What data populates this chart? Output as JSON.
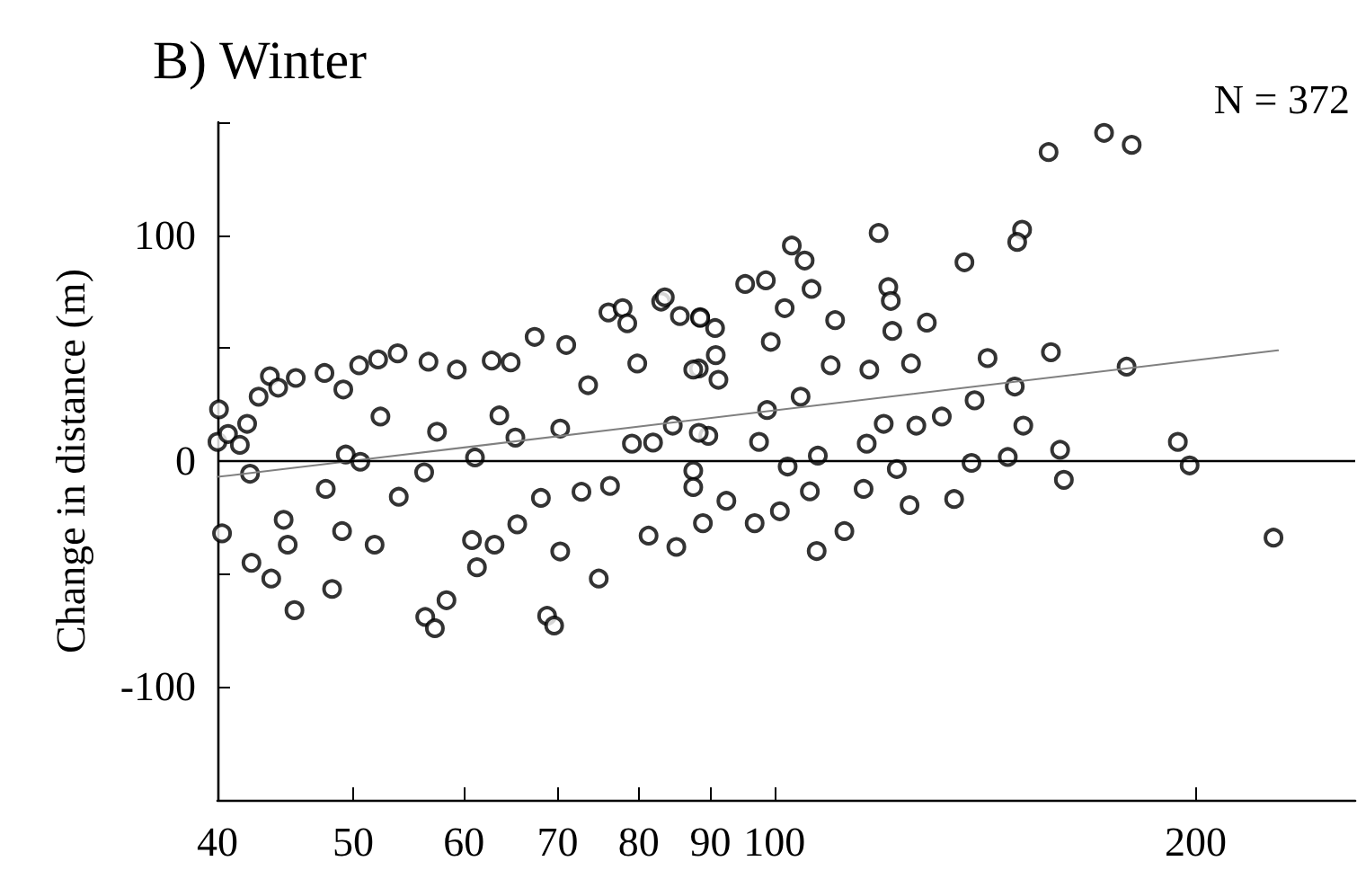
{
  "chart_data": {
    "type": "scatter",
    "title": "B) Winter",
    "ylabel": "Change in distance (m)",
    "annotations": [
      "N = 372"
    ],
    "log": "x",
    "grid": false,
    "marker": "circle",
    "xlim": [
      40,
      260
    ],
    "xticks": [
      40,
      50,
      60,
      70,
      80,
      90,
      100,
      200
    ],
    "ylim": [
      -150,
      150
    ],
    "yticks": [
      -100,
      {
        "value": -50,
        "label": null
      },
      0,
      {
        "value": 50,
        "label": null
      },
      100,
      {
        "value": 150,
        "label": null
      }
    ],
    "ref_lines": [
      {
        "axis": "y",
        "value": 0,
        "color": "#000000"
      }
    ],
    "series": [
      {
        "color": "#000000",
        "x": [
          40.1,
          40,
          40.3,
          40.7,
          42,
          42.3,
          42.8,
          43.6,
          43.7,
          44.2,
          45.4,
          45.5,
          44.9,
          44.6,
          47.7,
          48.3,
          49.2,
          49.1,
          50.5,
          51.8,
          52.1,
          53.8,
          56.2,
          56.6,
          56.3,
          57.2,
          58.3,
          59.3,
          60.8,
          61.3,
          62.8,
          63.1,
          64.8,
          65.5,
          67.4,
          68.8,
          69.6,
          71,
          70.3,
          73.6,
          74.9,
          76.1,
          77.9,
          78.5,
          79.8,
          81.3,
          83,
          83.5,
          85.1,
          85.6,
          88.5,
          88.3,
          89.7,
          41.5,
          42.2,
          47.8,
          49.4,
          50.6,
          52.3,
          53.9,
          57.4,
          61.1,
          63.6,
          65.3,
          68.1,
          70.3,
          72.8,
          76.3,
          79.1,
          81.9,
          84.6,
          87.5,
          88.3,
          157,
          172,
          180,
          150.3,
          149.1,
          118.7,
          136.7,
          102.9,
          105.1,
          95.3,
          98.6,
          120.6,
          121.1,
          106.3,
          101.7,
          110.5,
          121.4,
          128.5,
          88.5,
          90.7,
          90.8,
          87.5,
          91.2,
          99.4,
          109.7,
          116.9,
          125.2,
          142,
          157.6,
          178.5,
          148.5,
          139,
          150.6,
          131.7,
          104.4,
          98.8,
          126.3,
          119.7,
          194.2,
          198,
          227.3,
          160,
          161,
          138.3,
          146.8,
          134.4,
          124.9,
          112.2,
          107.2,
          96.8,
          100.9,
          106,
          115.8,
          122.3,
          102.2,
          107.4,
          116.4,
          97.5,
          87.5,
          92.4,
          88.9
        ],
        "values": [
          22.9,
          8.5,
          -32,
          12,
          16.5,
          -45,
          28.5,
          37.6,
          -52,
          32.5,
          -66,
          36.8,
          -37,
          -26,
          39,
          -56.6,
          31.7,
          -31,
          42.4,
          -37,
          45,
          47.7,
          -5,
          44,
          -69,
          -74,
          -61.6,
          40.5,
          -35,
          -47,
          44.5,
          -37,
          43.7,
          -28,
          55,
          -68.5,
          -72.8,
          51.4,
          -40,
          33.6,
          -52,
          65.8,
          67.7,
          61,
          43.2,
          -33,
          70.6,
          72.5,
          -38,
          64.2,
          63.7,
          41,
          11.2,
          7.2,
          -5.6,
          -12.3,
          2.9,
          -0.3,
          19.7,
          -15.8,
          13,
          1.6,
          20.2,
          10.4,
          -16.3,
          14.4,
          -13.6,
          -11,
          7.7,
          8.2,
          15.7,
          -4.3,
          12.5,
          136.8,
          145.3,
          140,
          102.4,
          97,
          101,
          88,
          95.4,
          88.8,
          78.4,
          80,
          77,
          70.9,
          76.2,
          67.7,
          62.4,
          57.6,
          61.3,
          63.4,
          58.9,
          46.9,
          40.5,
          36,
          52.8,
          42.4,
          40.5,
          43.2,
          45.6,
          48.2,
          41.8,
          33,
          26.9,
          15.7,
          19.7,
          28.5,
          22.6,
          15.7,
          16.5,
          8.5,
          -1.9,
          -33.9,
          5,
          -8.3,
          -0.8,
          1.8,
          -16.8,
          -19.5,
          -31,
          -39.8,
          -27.5,
          -22.2,
          -13.4,
          -12.3,
          -3.5,
          -2.4,
          2.4,
          7.7,
          8.5,
          -11.5,
          -17.6,
          -27.5
        ]
      },
      {
        "type": "line",
        "color": "#808080",
        "marker": "none",
        "x": [
          40,
          229
        ],
        "values": [
          -7,
          49
        ]
      }
    ]
  }
}
